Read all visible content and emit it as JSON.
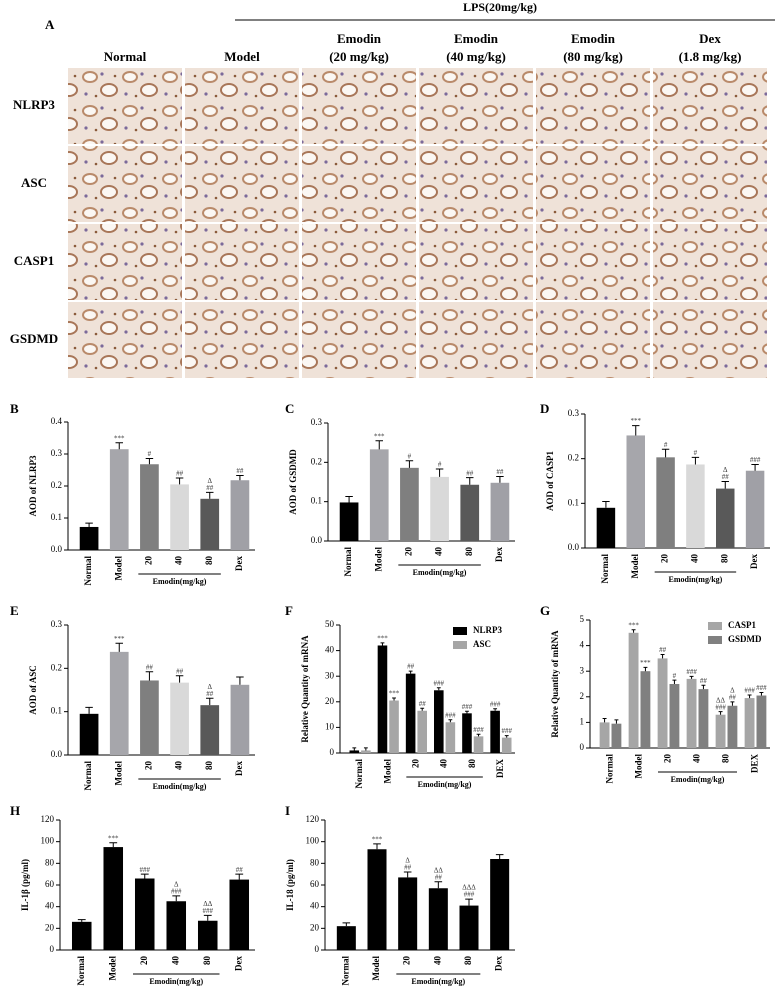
{
  "panel_a": {
    "label": "A",
    "treatment": "LPS(20mg/kg)",
    "columns": [
      [
        "Normal"
      ],
      [
        "Model"
      ],
      [
        "Emodin",
        "(20 mg/kg)"
      ],
      [
        "Emodin",
        "(40 mg/kg)"
      ],
      [
        "Emodin",
        "(80 mg/kg)"
      ],
      [
        "Dex",
        "(1.8 mg/kg)"
      ]
    ],
    "rows": [
      "NLRP3",
      "ASC",
      "CASP1",
      "GSDMD"
    ]
  },
  "chart_data": [
    {
      "type": "bar",
      "label": "B",
      "y_label": "AOD of NLRP3",
      "x_group_label": "Emodin(mg/kg)",
      "categories": [
        "Normal",
        "Model",
        "20",
        "40",
        "80",
        "Dex"
      ],
      "values": [
        0.072,
        0.315,
        0.268,
        0.205,
        0.16,
        0.218
      ],
      "errors": [
        0.012,
        0.02,
        0.018,
        0.02,
        0.02,
        0.015
      ],
      "colors": [
        "#000000",
        "#a6a6ab",
        "#7f7f7f",
        "#d9d9d9",
        "#595959",
        "#a0a0a6"
      ],
      "significance": [
        [],
        [
          "***"
        ],
        [
          "#"
        ],
        [
          "##"
        ],
        [
          "Δ",
          "##"
        ],
        [
          "##"
        ]
      ],
      "ylim": [
        0,
        0.4
      ],
      "yticks": [
        {
          "value": 0,
          "label": "0.0"
        },
        0.1,
        0.2,
        0.3,
        0.4
      ]
    },
    {
      "type": "bar",
      "label": "C",
      "y_label": "AOD of GSDMD",
      "x_group_label": "Emodin(mg/kg)",
      "categories": [
        "Normal",
        "Model",
        "20",
        "40",
        "80",
        "Dex"
      ],
      "values": [
        0.098,
        0.233,
        0.186,
        0.163,
        0.143,
        0.148
      ],
      "errors": [
        0.015,
        0.022,
        0.018,
        0.02,
        0.018,
        0.016
      ],
      "colors": [
        "#000000",
        "#a6a6ab",
        "#7f7f7f",
        "#d9d9d9",
        "#595959",
        "#a0a0a6"
      ],
      "significance": [
        [],
        [
          "***"
        ],
        [
          "#"
        ],
        [
          "#"
        ],
        [
          "##"
        ],
        [
          "##"
        ]
      ],
      "ylim": [
        0,
        0.3
      ],
      "yticks": [
        {
          "value": 0,
          "label": "0.0"
        },
        0.1,
        0.2,
        0.3
      ]
    },
    {
      "type": "bar",
      "label": "D",
      "y_label": "AOD of CASP1",
      "x_group_label": "Emodin(mg/kg)",
      "categories": [
        "Normal",
        "Model",
        "20",
        "40",
        "80",
        "Dex"
      ],
      "values": [
        0.09,
        0.252,
        0.203,
        0.187,
        0.133,
        0.173
      ],
      "errors": [
        0.014,
        0.022,
        0.018,
        0.016,
        0.016,
        0.014
      ],
      "colors": [
        "#000000",
        "#a6a6ab",
        "#7f7f7f",
        "#d9d9d9",
        "#595959",
        "#a0a0a6"
      ],
      "significance": [
        [],
        [
          "***"
        ],
        [
          "#"
        ],
        [
          "#"
        ],
        [
          "Δ",
          "##"
        ],
        [
          "###"
        ]
      ],
      "ylim": [
        0,
        0.3
      ],
      "yticks": [
        {
          "value": 0,
          "label": "0.0"
        },
        0.1,
        0.2,
        0.3
      ]
    },
    {
      "type": "bar",
      "label": "E",
      "y_label": "AOD of ASC",
      "x_group_label": "Emodin(mg/kg)",
      "categories": [
        "Normal",
        "Model",
        "20",
        "40",
        "80",
        "Dex"
      ],
      "values": [
        0.095,
        0.238,
        0.172,
        0.167,
        0.115,
        0.162
      ],
      "errors": [
        0.015,
        0.02,
        0.02,
        0.016,
        0.016,
        0.018
      ],
      "colors": [
        "#000000",
        "#a6a6ab",
        "#7f7f7f",
        "#d9d9d9",
        "#595959",
        "#a0a0a6"
      ],
      "significance": [
        [],
        [
          "***"
        ],
        [
          "##"
        ],
        [
          "##"
        ],
        [
          "Δ",
          "##"
        ],
        []
      ],
      "ylim": [
        0,
        0.3
      ],
      "yticks": [
        {
          "value": 0,
          "label": "0.0"
        },
        0.1,
        0.2,
        0.3
      ]
    },
    {
      "type": "grouped_bar",
      "label": "F",
      "y_label": "Relative Quantity of mRNA",
      "x_group_label": "Emodin(mg/kg)",
      "categories": [
        "Normal",
        "Model",
        "20",
        "40",
        "80",
        "DEX"
      ],
      "legend": "upper right",
      "series": [
        {
          "name": "NLRP3",
          "color": "#000000",
          "values": [
            1,
            42,
            31,
            24.5,
            15.5,
            16.5
          ],
          "errors": [
            1,
            1,
            1,
            1,
            0.8,
            0.8
          ],
          "significance": [
            [],
            [
              "***"
            ],
            [
              "##"
            ],
            [
              "###"
            ],
            [
              "###"
            ],
            [
              "###"
            ]
          ]
        },
        {
          "name": "ASC",
          "color": "#a6a6a6",
          "values": [
            1,
            20.5,
            16.5,
            12,
            6.5,
            6
          ],
          "errors": [
            1,
            1,
            1,
            1,
            0.8,
            0.8
          ],
          "significance": [
            [],
            [
              "***"
            ],
            [
              "##"
            ],
            [
              "###"
            ],
            [
              "###"
            ],
            [
              "###"
            ]
          ]
        }
      ],
      "ylim": [
        0,
        50
      ],
      "yticks": [
        0,
        10,
        20,
        30,
        40,
        50
      ]
    },
    {
      "type": "grouped_bar",
      "label": "G",
      "y_label": "Relative Quantity of mRNA",
      "x_group_label": "Emodin(mg/kg)",
      "categories": [
        "Normal",
        "Model",
        "20",
        "40",
        "80",
        "DEX"
      ],
      "legend": "upper right",
      "series": [
        {
          "name": "CASP1",
          "color": "#a6a6a6",
          "values": [
            1.0,
            4.5,
            3.5,
            2.7,
            1.3,
            1.95
          ],
          "errors": [
            0.15,
            0.12,
            0.15,
            0.1,
            0.12,
            0.12
          ],
          "significance": [
            [],
            [
              "***"
            ],
            [
              "##"
            ],
            [
              "###"
            ],
            [
              "ΔΔ",
              "###"
            ],
            [
              "###"
            ]
          ]
        },
        {
          "name": "GSDMD",
          "color": "#808080",
          "values": [
            0.95,
            3.0,
            2.5,
            2.3,
            1.65,
            2.05
          ],
          "errors": [
            0.15,
            0.15,
            0.15,
            0.15,
            0.15,
            0.12
          ],
          "significance": [
            [],
            [
              "***"
            ],
            [
              "#"
            ],
            [
              "##"
            ],
            [
              "Δ",
              "##"
            ],
            [
              "###"
            ]
          ]
        }
      ],
      "ylim": [
        0,
        5
      ],
      "yticks": [
        0,
        1,
        2,
        3,
        4,
        5
      ]
    },
    {
      "type": "bar",
      "label": "H",
      "y_label": "IL-1β (pg/ml)",
      "x_group_label": "Emodin(mg/kg)",
      "categories": [
        "Normal",
        "Model",
        "20",
        "40",
        "80",
        "Dex"
      ],
      "values": [
        26,
        95,
        66,
        45,
        27,
        65
      ],
      "errors": [
        2,
        4,
        4,
        5,
        5,
        5
      ],
      "colors": [
        "#000000",
        "#000000",
        "#000000",
        "#000000",
        "#000000",
        "#000000"
      ],
      "significance": [
        [],
        [
          "***"
        ],
        [
          "###"
        ],
        [
          "Δ",
          "###"
        ],
        [
          "ΔΔ",
          "###"
        ],
        [
          "##"
        ]
      ],
      "ylim": [
        0,
        120
      ],
      "yticks": [
        0,
        20,
        40,
        60,
        80,
        100,
        120
      ]
    },
    {
      "type": "bar",
      "label": "I",
      "y_label": "IL-18 (pg/ml)",
      "x_group_label": "Emodin(mg/kg)",
      "categories": [
        "Normal",
        "Model",
        "20",
        "40",
        "80",
        "Dex"
      ],
      "values": [
        22,
        93,
        67,
        57,
        41,
        84
      ],
      "errors": [
        3,
        5,
        5,
        6,
        6,
        4
      ],
      "colors": [
        "#000000",
        "#000000",
        "#000000",
        "#000000",
        "#000000",
        "#000000"
      ],
      "significance": [
        [],
        [
          "***"
        ],
        [
          "Δ",
          "##"
        ],
        [
          "ΔΔ",
          "##"
        ],
        [
          "ΔΔΔ",
          "###"
        ],
        []
      ],
      "ylim": [
        0,
        120
      ],
      "yticks": [
        0,
        20,
        40,
        60,
        80,
        100,
        120
      ]
    }
  ]
}
